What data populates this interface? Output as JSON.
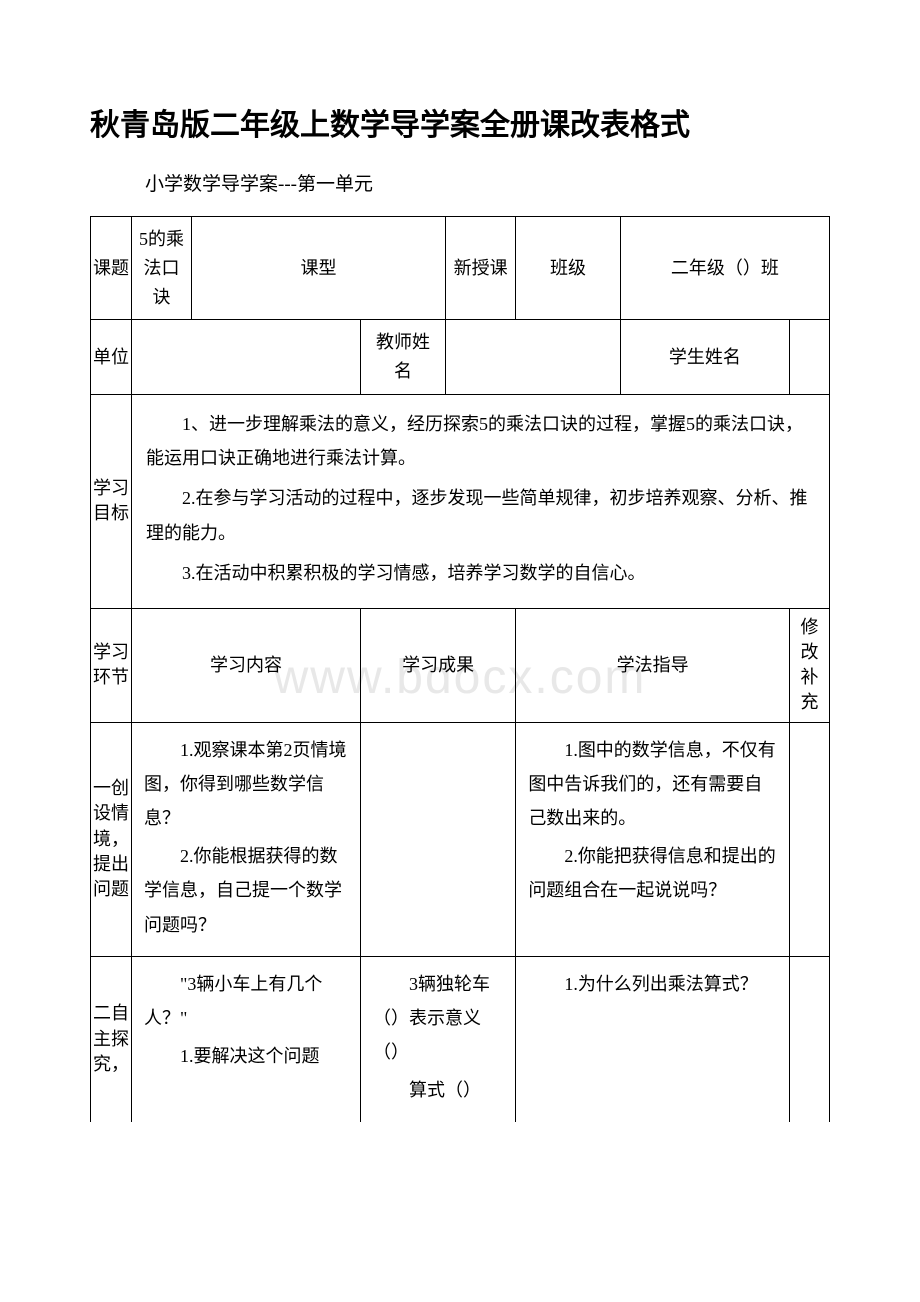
{
  "page": {
    "title": "秋青岛版二年级上数学导学案全册课改表格式",
    "subtitle": "小学数学导学案---第一单元",
    "watermark": "www.bdocx.com"
  },
  "header_row1": {
    "topic_label": "课题",
    "topic_value": "5的乘法口诀",
    "type_label": "课型",
    "type_value": "新授课",
    "class_label": "班级",
    "class_value": "二年级（）班"
  },
  "header_row2": {
    "unit_label": "单位",
    "teacher_label": "教师姓名",
    "student_label": "学生姓名"
  },
  "goals": {
    "label": "学习目标",
    "item1": "1、进一步理解乘法的意义，经历探索5的乘法口诀的过程，掌握5的乘法口诀，能运用口诀正确地进行乘法计算。",
    "item2": "2.在参与学习活动的过程中，逐步发现一些简单规律，初步培养观察、分析、推理的能力。",
    "item3": "3.在活动中积累积极的学习情感，培养学习数学的自信心。"
  },
  "columns": {
    "col1": "学习环节",
    "col2": "学习内容",
    "col3": "学习成果",
    "col4": "学法指导",
    "col5": "修改补充"
  },
  "section1": {
    "title": "一创设情境，提出问题",
    "content_p1": "1.观察课本第2页情境图，你得到哪些数学信息？",
    "content_p2": "2.你能根据获得的数学信息，自己提一个数学问题吗？",
    "guide_p1": "1.图中的数学信息，不仅有图中告诉我们的，还有需要自己数出来的。",
    "guide_p2": "2.你能把获得信息和提出的问题组合在一起说说吗？"
  },
  "section2": {
    "title": "二自主探究，",
    "content_p1": "\"3辆小车上有几个人？\"",
    "content_p2": "1.要解决这个问题",
    "result_p1": "3辆独轮车（）表示意义（）",
    "result_p2": "算式（）",
    "guide_p1": "1.为什么列出乘法算式？"
  }
}
